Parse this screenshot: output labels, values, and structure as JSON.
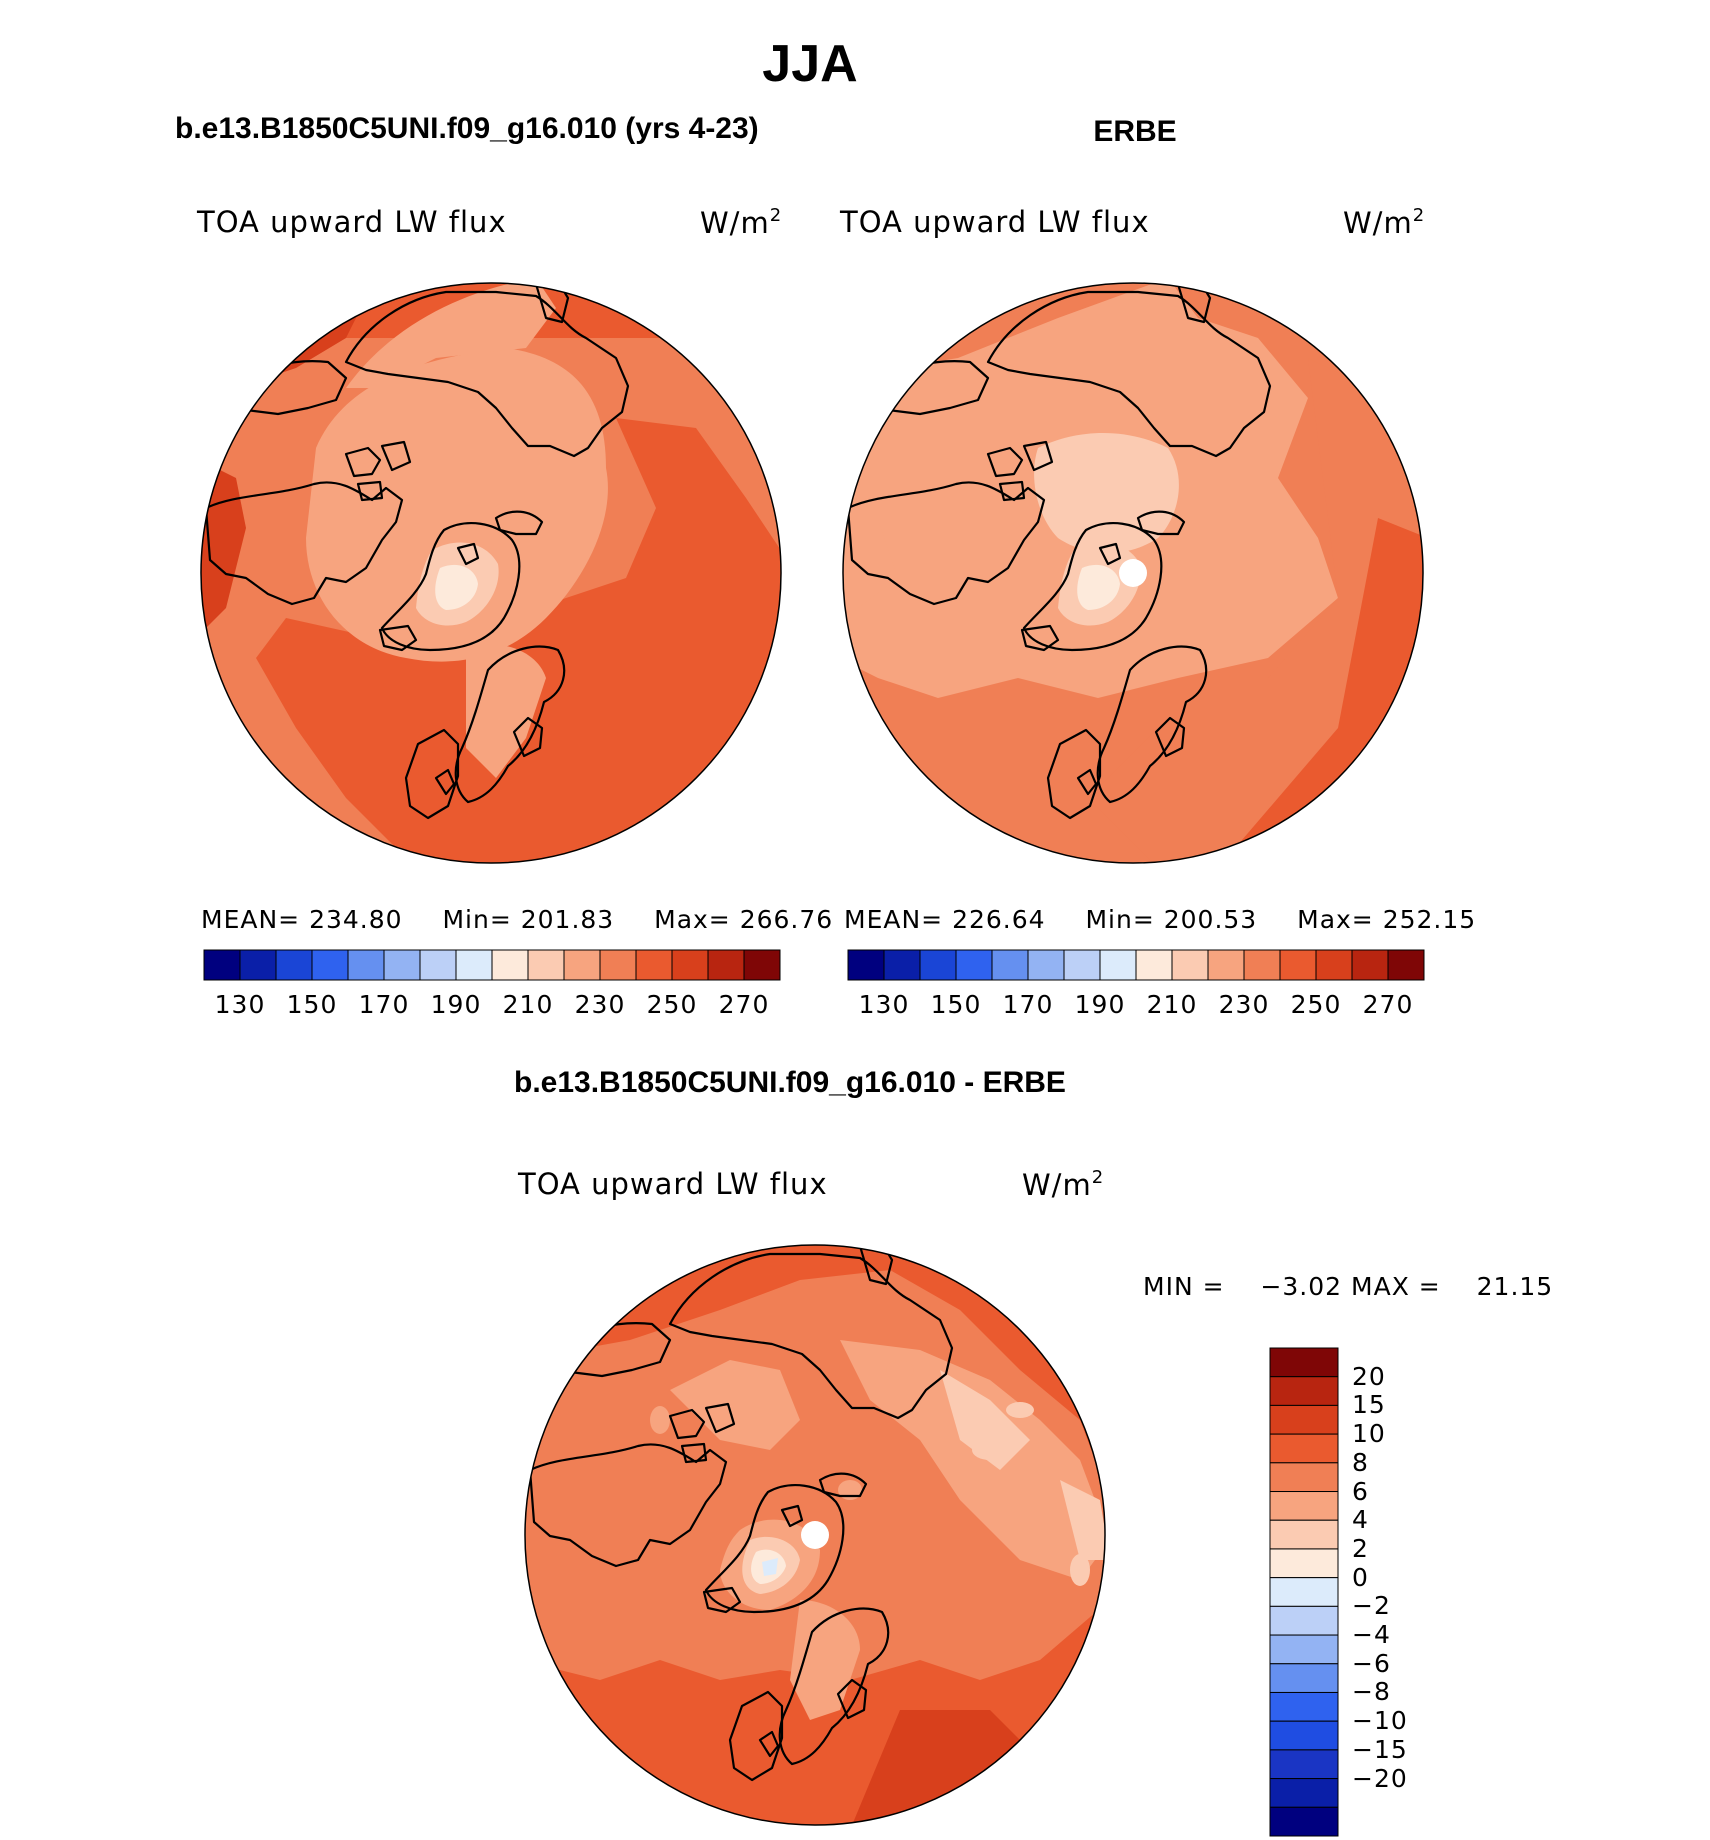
{
  "page": {
    "title": "JJA"
  },
  "model_panel": {
    "title": "b.e13.B1850C5UNI.f09_g16.010 (yrs 4-23)",
    "label": "TOA upward LW flux",
    "units": "W/m",
    "units_sup": "2",
    "mean_label": "MEAN=",
    "mean": "234.80",
    "min_label": "Min=",
    "min": "201.83",
    "max_label": "Max=",
    "max": "266.76"
  },
  "obs_panel": {
    "title": "ERBE",
    "label": "TOA upward LW flux",
    "units": "W/m",
    "units_sup": "2",
    "mean_label": "MEAN=",
    "mean": "226.64",
    "min_label": "Min=",
    "min": "200.53",
    "max_label": "Max=",
    "max": "252.15"
  },
  "diff_panel": {
    "title": "b.e13.B1850C5UNI.f09_g16.010 - ERBE",
    "label": "TOA upward LW flux",
    "units": "W/m",
    "units_sup": "2",
    "min_label": "MIN =",
    "min": "−3.02",
    "max_label": "MAX =",
    "max": "21.15"
  },
  "colors": {
    "abs_scale": [
      "#00007f",
      "#0a1fa8",
      "#1a45d6",
      "#2f62ef",
      "#6590f0",
      "#93b3f3",
      "#bcd0f7",
      "#dcebfb",
      "#fdeadb",
      "#fbcbb2",
      "#f7a47f",
      "#f07f55",
      "#ea5a2f",
      "#d8401c",
      "#b82510",
      "#7f0606"
    ],
    "diff_scale": [
      "#00007f",
      "#0a1fa8",
      "#1a35c4",
      "#1f4de2",
      "#2f62ef",
      "#6590f0",
      "#93b3f3",
      "#bcd0f7",
      "#dcebfb",
      "#fdeadb",
      "#fbcbb2",
      "#f7a47f",
      "#f07f55",
      "#ea5a2f",
      "#d8401c",
      "#b82510",
      "#7f0606"
    ],
    "coast": "#000000",
    "missing": "#ffffff"
  },
  "chart_data": [
    {
      "type": "heatmap",
      "projection": "north-polar-stereographic",
      "title": "b.e13.B1850C5UNI.f09_g16.010 (yrs 4-23)",
      "variable": "TOA upward LW flux",
      "units": "W/m2",
      "mean": 234.8,
      "min": 201.83,
      "max": 266.76,
      "colorbar_ticks": [
        130,
        150,
        170,
        190,
        210,
        230,
        250,
        270
      ],
      "colorbar_range": [
        120,
        280
      ]
    },
    {
      "type": "heatmap",
      "projection": "north-polar-stereographic",
      "title": "ERBE",
      "variable": "TOA upward LW flux",
      "units": "W/m2",
      "mean": 226.64,
      "min": 200.53,
      "max": 252.15,
      "colorbar_ticks": [
        130,
        150,
        170,
        190,
        210,
        230,
        250,
        270
      ],
      "colorbar_range": [
        120,
        280
      ]
    },
    {
      "type": "heatmap",
      "projection": "north-polar-stereographic",
      "title": "b.e13.B1850C5UNI.f09_g16.010 - ERBE",
      "variable": "TOA upward LW flux",
      "units": "W/m2",
      "min": -3.02,
      "max": 21.15,
      "colorbar_levels": [
        20,
        15,
        10,
        8,
        6,
        4,
        2,
        0,
        -2,
        -4,
        -6,
        -8,
        -10,
        -15,
        -20
      ],
      "colorbar_labels": [
        "20",
        "15",
        "10",
        "8",
        "6",
        "4",
        "2",
        "0",
        "−2",
        "−4",
        "−6",
        "−8",
        "−10",
        "−15",
        "−20"
      ]
    }
  ]
}
